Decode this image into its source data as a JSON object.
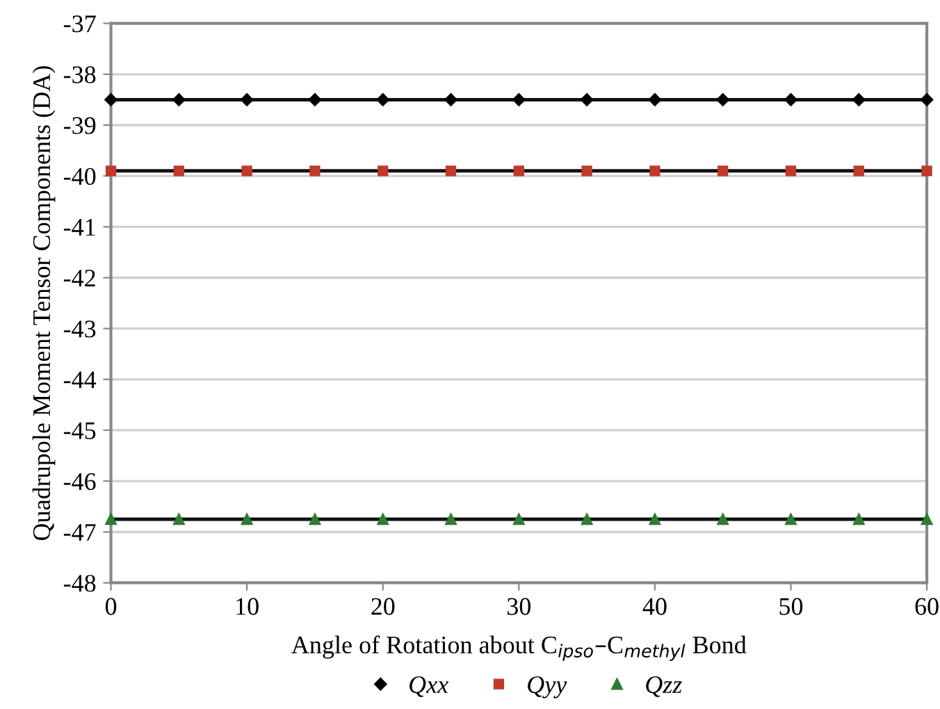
{
  "chart_data": {
    "type": "line",
    "xlabel": "Angle of Rotation about C$_{ipso}$–C$_{methyl}$ Bond",
    "ylabel": "Quadrupole Moment Tensor Components (DA)",
    "x": [
      0,
      5,
      10,
      15,
      20,
      25,
      30,
      35,
      40,
      45,
      50,
      55,
      60
    ],
    "series": [
      {
        "name": "Qxx",
        "color": "#000000",
        "marker": "diamond",
        "values": [
          -38.5,
          -38.5,
          -38.5,
          -38.5,
          -38.5,
          -38.5,
          -38.5,
          -38.5,
          -38.5,
          -38.5,
          -38.5,
          -38.5,
          -38.5
        ]
      },
      {
        "name": "Qyy",
        "color": "#c0392b",
        "marker": "square",
        "values": [
          -39.9,
          -39.9,
          -39.9,
          -39.9,
          -39.9,
          -39.9,
          -39.9,
          -39.9,
          -39.9,
          -39.9,
          -39.9,
          -39.9,
          -39.9
        ]
      },
      {
        "name": "Qzz",
        "color": "#2e7d32",
        "marker": "triangle",
        "values": [
          -46.75,
          -46.75,
          -46.75,
          -46.75,
          -46.75,
          -46.75,
          -46.75,
          -46.75,
          -46.75,
          -46.75,
          -46.75,
          -46.75,
          -46.75
        ]
      }
    ],
    "xlim": [
      0,
      60
    ],
    "xticks": [
      0,
      10,
      20,
      30,
      40,
      50,
      60
    ],
    "ylim": [
      -48,
      -37
    ],
    "yticks": [
      -48,
      -47,
      -46,
      -45,
      -44,
      -43,
      -42,
      -41,
      -40,
      -39,
      -38,
      -37
    ],
    "grid": "y",
    "legend": "bottom",
    "line_style": "solid"
  }
}
